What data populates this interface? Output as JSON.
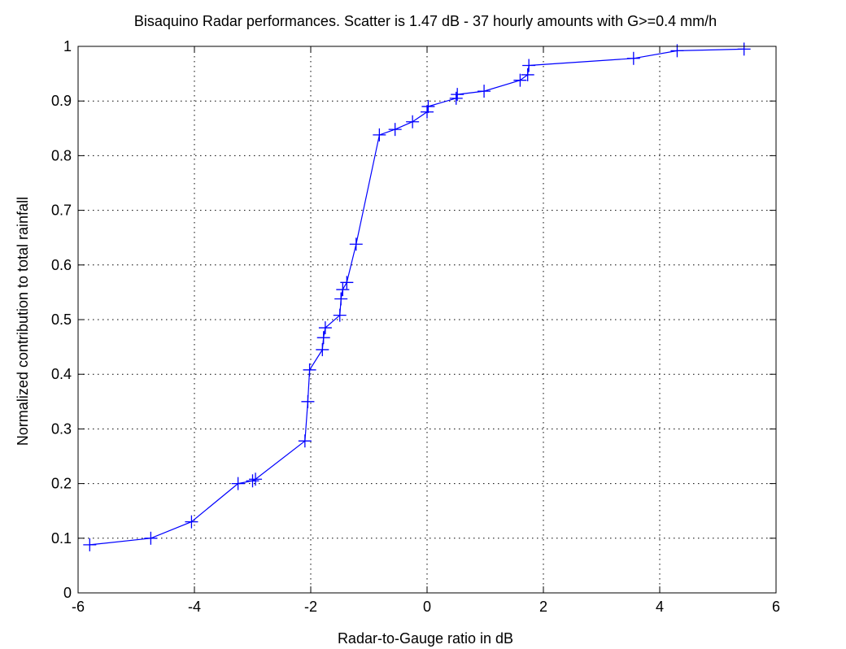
{
  "chart_data": {
    "type": "line",
    "title": "Bisaquino Radar performances. Scatter is 1.47 dB - 37 hourly amounts with G>=0.4 mm/h",
    "xlabel": "Radar-to-Gauge ratio in dB",
    "ylabel": "Normalized contribution to total rainfall",
    "xlim": [
      -6,
      6
    ],
    "ylim": [
      0,
      1
    ],
    "xticks": [
      -6,
      -4,
      -2,
      0,
      2,
      4,
      6
    ],
    "yticks": [
      0,
      0.1,
      0.2,
      0.3,
      0.4,
      0.5,
      0.6,
      0.7,
      0.8,
      0.9,
      1
    ],
    "xtick_labels": [
      "-6",
      "-4",
      "-2",
      "0",
      "2",
      "4",
      "6"
    ],
    "ytick_labels": [
      "0",
      "0.1",
      "0.2",
      "0.3",
      "0.4",
      "0.5",
      "0.6",
      "0.7",
      "0.8",
      "0.9",
      "1"
    ],
    "grid": true,
    "marker": "+",
    "line_color": "#0000ff",
    "series": [
      {
        "x": [
          -5.8,
          -4.75,
          -4.05,
          -3.25,
          -3.0,
          -2.95,
          -2.1,
          -2.05,
          -2.02,
          -1.8,
          -1.78,
          -1.75,
          -1.5,
          -1.48,
          -1.45,
          -1.38,
          -1.22,
          -0.82,
          -0.55,
          -0.25,
          0.0,
          0.02,
          0.5,
          0.52,
          0.98,
          1.6,
          1.73,
          1.75,
          3.55,
          4.3,
          5.45
        ],
        "y": [
          0.088,
          0.1,
          0.13,
          0.2,
          0.205,
          0.208,
          0.278,
          0.35,
          0.408,
          0.445,
          0.467,
          0.485,
          0.508,
          0.538,
          0.555,
          0.568,
          0.638,
          0.838,
          0.848,
          0.862,
          0.88,
          0.89,
          0.905,
          0.912,
          0.918,
          0.938,
          0.948,
          0.965,
          0.978,
          0.992,
          0.995
        ]
      }
    ]
  }
}
